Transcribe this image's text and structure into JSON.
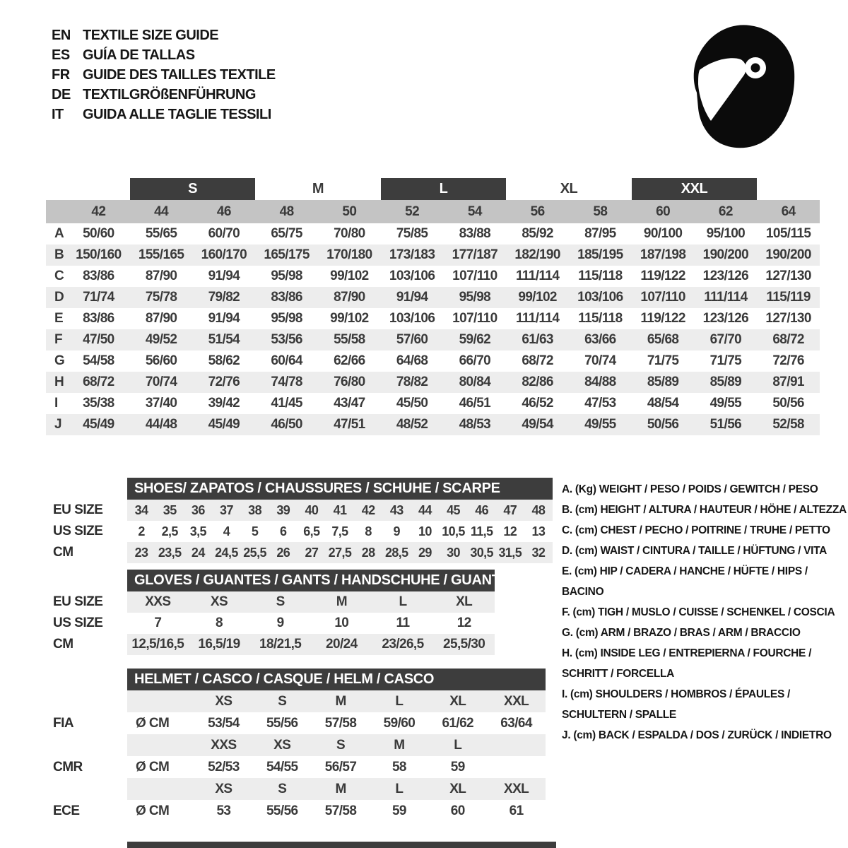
{
  "languages": [
    {
      "code": "EN",
      "title": "TEXTILE SIZE GUIDE"
    },
    {
      "code": "ES",
      "title": "GUÍA DE TALLAS"
    },
    {
      "code": "FR",
      "title": "GUIDE DES TAILLES TEXTILE"
    },
    {
      "code": "DE",
      "title": "TEXTILGRÖßENFÜHRUNG"
    },
    {
      "code": "IT",
      "title": "GUIDA ALLE TAGLIE TESSILI"
    }
  ],
  "main_table": {
    "size_groups": [
      {
        "label": "S",
        "boxed": true
      },
      {
        "label": "M",
        "boxed": false
      },
      {
        "label": "L",
        "boxed": true
      },
      {
        "label": "XL",
        "boxed": false
      },
      {
        "label": "XXL",
        "boxed": true
      }
    ],
    "sizes": [
      "42",
      "44",
      "46",
      "48",
      "50",
      "52",
      "54",
      "56",
      "58",
      "60",
      "62",
      "64"
    ],
    "rows": [
      {
        "label": "A",
        "values": [
          "50/60",
          "55/65",
          "60/70",
          "65/75",
          "70/80",
          "75/85",
          "83/88",
          "85/92",
          "87/95",
          "90/100",
          "95/100",
          "105/115"
        ]
      },
      {
        "label": "B",
        "values": [
          "150/160",
          "155/165",
          "160/170",
          "165/175",
          "170/180",
          "173/183",
          "177/187",
          "182/190",
          "185/195",
          "187/198",
          "190/200",
          "190/200"
        ]
      },
      {
        "label": "C",
        "values": [
          "83/86",
          "87/90",
          "91/94",
          "95/98",
          "99/102",
          "103/106",
          "107/110",
          "111/114",
          "115/118",
          "119/122",
          "123/126",
          "127/130"
        ]
      },
      {
        "label": "D",
        "values": [
          "71/74",
          "75/78",
          "79/82",
          "83/86",
          "87/90",
          "91/94",
          "95/98",
          "99/102",
          "103/106",
          "107/110",
          "111/114",
          "115/119"
        ]
      },
      {
        "label": "E",
        "values": [
          "83/86",
          "87/90",
          "91/94",
          "95/98",
          "99/102",
          "103/106",
          "107/110",
          "111/114",
          "115/118",
          "119/122",
          "123/126",
          "127/130"
        ]
      },
      {
        "label": "F",
        "values": [
          "47/50",
          "49/52",
          "51/54",
          "53/56",
          "55/58",
          "57/60",
          "59/62",
          "61/63",
          "63/66",
          "65/68",
          "67/70",
          "68/72"
        ]
      },
      {
        "label": "G",
        "values": [
          "54/58",
          "56/60",
          "58/62",
          "60/64",
          "62/66",
          "64/68",
          "66/70",
          "68/72",
          "70/74",
          "71/75",
          "71/75",
          "72/76"
        ]
      },
      {
        "label": "H",
        "values": [
          "68/72",
          "70/74",
          "72/76",
          "74/78",
          "76/80",
          "78/82",
          "80/84",
          "82/86",
          "84/88",
          "85/89",
          "85/89",
          "87/91"
        ]
      },
      {
        "label": "I",
        "values": [
          "35/38",
          "37/40",
          "39/42",
          "41/45",
          "43/47",
          "45/50",
          "46/51",
          "46/52",
          "47/53",
          "48/54",
          "49/55",
          "50/56"
        ]
      },
      {
        "label": "J",
        "values": [
          "45/49",
          "44/48",
          "45/49",
          "46/50",
          "47/51",
          "48/52",
          "48/53",
          "49/54",
          "49/55",
          "50/56",
          "51/56",
          "52/58"
        ]
      }
    ]
  },
  "shoes": {
    "title": "SHOES/ ZAPATOS / CHAUSSURES / SCHUHE / SCARPE",
    "rows": [
      {
        "label": "EU SIZE",
        "values": [
          "34",
          "35",
          "36",
          "37",
          "38",
          "39",
          "40",
          "41",
          "42",
          "43",
          "44",
          "45",
          "46",
          "47",
          "48"
        ]
      },
      {
        "label": "US SIZE",
        "values": [
          "2",
          "2,5",
          "3,5",
          "4",
          "5",
          "6",
          "6,5",
          "7,5",
          "8",
          "9",
          "10",
          "10,5",
          "11,5",
          "12",
          "13"
        ]
      },
      {
        "label": "CM",
        "values": [
          "23",
          "23,5",
          "24",
          "24,5",
          "25,5",
          "26",
          "27",
          "27,5",
          "28",
          "28,5",
          "29",
          "30",
          "30,5",
          "31,5",
          "32"
        ]
      }
    ]
  },
  "gloves": {
    "title": "GLOVES / GUANTES / GANTS / HANDSCHUHE / GUANTI",
    "rows": [
      {
        "label": "EU SIZE",
        "values": [
          "XXS",
          "XS",
          "S",
          "M",
          "L",
          "XL"
        ]
      },
      {
        "label": "US SIZE",
        "values": [
          "7",
          "8",
          "9",
          "10",
          "11",
          "12"
        ]
      },
      {
        "label": "CM",
        "values": [
          "12,5/16,5",
          "16,5/19",
          "18/21,5",
          "20/24",
          "23/26,5",
          "25,5/30"
        ]
      }
    ]
  },
  "helmet": {
    "title": "HELMET / CASCO / CASQUE / HELM / CASCO",
    "diameter_label": "Ø CM",
    "standards": [
      {
        "name": "FIA",
        "sizes": [
          "XS",
          "S",
          "M",
          "L",
          "XL",
          "XXL"
        ],
        "values": [
          "53/54",
          "55/56",
          "57/58",
          "59/60",
          "61/62",
          "63/64"
        ]
      },
      {
        "name": "CMR",
        "sizes": [
          "XXS",
          "XS",
          "S",
          "M",
          "L",
          ""
        ],
        "values": [
          "52/53",
          "54/55",
          "56/57",
          "58",
          "59",
          ""
        ]
      },
      {
        "name": "ECE",
        "sizes": [
          "XS",
          "S",
          "M",
          "L",
          "XL",
          "XXL"
        ],
        "values": [
          "53",
          "55/56",
          "57/58",
          "59",
          "60",
          "61"
        ]
      }
    ]
  },
  "legend": [
    "A. (Kg) WEIGHT / PESO / POIDS / GEWITCH / PESO",
    "B. (cm) HEIGHT / ALTURA / HAUTEUR / HÖHE / ALTEZZA",
    "C. (cm) CHEST / PECHO / POITRINE / TRUHE / PETTO",
    "D. (cm) WAIST / CINTURA / TAILLE / HÜFTUNG / VITA",
    "E. (cm) HIP / CADERA / HANCHE / HÜFTE / HIPS / BACINO",
    "F. (cm) TIGH / MUSLO / CUISSE / SCHENKEL / COSCIA",
    "G. (cm) ARM / BRAZO / BRAS / ARM / BRACCIO",
    "H. (cm) INSIDE LEG / ENTREPIERNA / FOURCHE / SCHRITT / FORCELLA",
    "I. (cm) SHOULDERS / HOMBROS / ÉPAULES / SCHULTERN / SPALLE",
    "J. (cm) BACK / ESPALDA / DOS / ZURÜCK / INDIETRO"
  ],
  "colors": {
    "bar_dark": "#3d3d3d",
    "size_header_gray": "#c4c4c4",
    "stripe_gray": "#ededed",
    "text_dark": "#3a3a3a",
    "helmet_black": "#0b0b0b"
  }
}
